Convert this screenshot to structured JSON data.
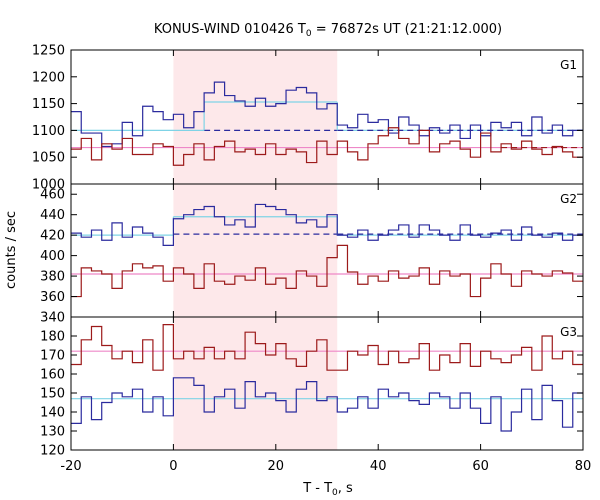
{
  "chart_data": {
    "type": "line",
    "title": "KONUS-WIND 010426 T",
    "title_sub": "0",
    "title_rest": " = 76872s UT (21:21:12.000)",
    "xlabel": "T - T",
    "xlabel_sub": "0",
    "xlabel_rest": ", s",
    "ylabel": "counts / sec",
    "xlim": [
      -20,
      80
    ],
    "x_ticks": [
      -20,
      0,
      20,
      40,
      60,
      80
    ],
    "shaded_interval": [
      0,
      32
    ],
    "colors": {
      "shade": "#fde8ea",
      "blue": "#2b2b9e",
      "red": "#9c1a1a",
      "cyan": "#7fd3e6",
      "pink": "#ee88c8",
      "frame": "#000000"
    },
    "panels": [
      {
        "label": "G1",
        "ylim": [
          1000,
          1250
        ],
        "y_ticks": [
          1000,
          1050,
          1100,
          1150,
          1200,
          1250
        ],
        "bin_edges": [
          -20,
          -18,
          -16,
          -14,
          -12,
          -10,
          -8,
          -6,
          -4,
          -2,
          0,
          2,
          4,
          6,
          8,
          10,
          12,
          14,
          16,
          18,
          20,
          22,
          24,
          26,
          28,
          30,
          32,
          34,
          36,
          38,
          40,
          42,
          44,
          46,
          48,
          50,
          52,
          54,
          56,
          58,
          60,
          62,
          64,
          66,
          68,
          70,
          72,
          74,
          76,
          78,
          80
        ],
        "series": [
          {
            "color_key": "blue",
            "values": [
              1135,
              1095,
              1095,
              1070,
              1075,
              1115,
              1090,
              1145,
              1135,
              1120,
              1130,
              1105,
              1135,
              1170,
              1190,
              1165,
              1155,
              1145,
              1160,
              1145,
              1150,
              1175,
              1180,
              1170,
              1140,
              1150,
              1110,
              1105,
              1130,
              1115,
              1120,
              1095,
              1125,
              1110,
              1090,
              1105,
              1095,
              1110,
              1085,
              1110,
              1090,
              1115,
              1105,
              1115,
              1090,
              1125,
              1095,
              1110,
              1090,
              1100
            ]
          },
          {
            "color_key": "red",
            "values": [
              1065,
              1085,
              1045,
              1075,
              1065,
              1085,
              1055,
              1055,
              1075,
              1070,
              1035,
              1055,
              1075,
              1045,
              1070,
              1080,
              1060,
              1065,
              1055,
              1075,
              1055,
              1065,
              1060,
              1040,
              1080,
              1055,
              1080,
              1060,
              1045,
              1075,
              1090,
              1105,
              1085,
              1075,
              1100,
              1060,
              1075,
              1080,
              1065,
              1050,
              1095,
              1060,
              1075,
              1065,
              1080,
              1065,
              1055,
              1070,
              1060,
              1050
            ]
          }
        ],
        "fits": [
          {
            "color_key": "cyan",
            "style": "solid",
            "segments": [
              [
                -20,
                6,
                1100
              ],
              [
                6,
                32,
                1153
              ],
              [
                32,
                80,
                1100
              ]
            ]
          },
          {
            "color_key": "blue",
            "style": "dashed",
            "segments": [
              [
                6,
                32,
                1100
              ],
              [
                32,
                80,
                1100
              ]
            ]
          },
          {
            "color_key": "pink",
            "style": "solid",
            "segments": [
              [
                -20,
                80,
                1068
              ]
            ]
          },
          {
            "color_key": "red",
            "style": "dashed",
            "segments": [
              [
                64,
                80,
                1068
              ]
            ]
          }
        ]
      },
      {
        "label": "G2",
        "ylim": [
          340,
          470
        ],
        "y_ticks": [
          340,
          360,
          380,
          400,
          420,
          440,
          460
        ],
        "bin_edges": [
          -20,
          -18,
          -16,
          -14,
          -12,
          -10,
          -8,
          -6,
          -4,
          -2,
          0,
          2,
          4,
          6,
          8,
          10,
          12,
          14,
          16,
          18,
          20,
          22,
          24,
          26,
          28,
          30,
          32,
          34,
          36,
          38,
          40,
          42,
          44,
          46,
          48,
          50,
          52,
          54,
          56,
          58,
          60,
          62,
          64,
          66,
          68,
          70,
          72,
          74,
          76,
          78,
          80
        ],
        "series": [
          {
            "color_key": "blue",
            "values": [
              422,
              418,
              425,
              415,
              432,
              418,
              428,
              422,
              418,
              410,
              436,
              440,
              445,
              448,
              438,
              430,
              435,
              428,
              450,
              448,
              445,
              440,
              432,
              435,
              428,
              440,
              420,
              418,
              425,
              415,
              420,
              425,
              430,
              418,
              430,
              425,
              420,
              415,
              430,
              420,
              418,
              422,
              425,
              415,
              428,
              420,
              418,
              422,
              415,
              420
            ]
          },
          {
            "color_key": "red",
            "values": [
              360,
              388,
              385,
              382,
              368,
              385,
              392,
              388,
              390,
              375,
              388,
              382,
              368,
              392,
              375,
              372,
              380,
              376,
              388,
              372,
              378,
              368,
              385,
              380,
              370,
              398,
              410,
              384,
              372,
              380,
              375,
              385,
              378,
              380,
              388,
              372,
              385,
              380,
              382,
              360,
              378,
              392,
              382,
              370,
              385,
              382,
              380,
              385,
              383,
              375
            ]
          }
        ],
        "fits": [
          {
            "color_key": "cyan",
            "style": "solid",
            "segments": [
              [
                -20,
                0,
                420
              ],
              [
                0,
                32,
                438
              ],
              [
                32,
                80,
                420
              ]
            ]
          },
          {
            "color_key": "blue",
            "style": "dashed",
            "segments": [
              [
                0,
                32,
                421
              ],
              [
                32,
                80,
                421
              ]
            ]
          },
          {
            "color_key": "pink",
            "style": "solid",
            "segments": [
              [
                -20,
                80,
                382
              ]
            ]
          }
        ]
      },
      {
        "label": "G3",
        "ylim": [
          120,
          190
        ],
        "y_ticks": [
          120,
          130,
          140,
          150,
          160,
          170,
          180
        ],
        "bin_edges": [
          -20,
          -18,
          -16,
          -14,
          -12,
          -10,
          -8,
          -6,
          -4,
          -2,
          0,
          2,
          4,
          6,
          8,
          10,
          12,
          14,
          16,
          18,
          20,
          22,
          24,
          26,
          28,
          30,
          32,
          34,
          36,
          38,
          40,
          42,
          44,
          46,
          48,
          50,
          52,
          54,
          56,
          58,
          60,
          62,
          64,
          66,
          68,
          70,
          72,
          74,
          76,
          78,
          80
        ],
        "series": [
          {
            "color_key": "red",
            "values": [
              165,
              178,
              185,
              175,
              168,
              172,
              166,
              178,
              162,
              186,
              168,
              172,
              168,
              174,
              168,
              172,
              168,
              182,
              176,
              170,
              176,
              168,
              164,
              172,
              178,
              162,
              162,
              172,
              170,
              175,
              165,
              172,
              166,
              168,
              176,
              162,
              170,
              166,
              176,
              164,
              172,
              168,
              166,
              170,
              174,
              162,
              180,
              168,
              172,
              165
            ]
          },
          {
            "color_key": "blue",
            "values": [
              134,
              148,
              136,
              145,
              150,
              148,
              152,
              140,
              148,
              138,
              158,
              158,
              154,
              140,
              148,
              152,
              142,
              156,
              148,
              150,
              146,
              140,
              152,
              156,
              146,
              148,
              140,
              142,
              148,
              142,
              152,
              148,
              150,
              146,
              144,
              150,
              148,
              142,
              150,
              142,
              134,
              148,
              130,
              140,
              152,
              136,
              154,
              146,
              132,
              150
            ]
          }
        ],
        "fits": [
          {
            "color_key": "cyan",
            "style": "solid",
            "segments": [
              [
                -20,
                80,
                147
              ]
            ]
          },
          {
            "color_key": "pink",
            "style": "solid",
            "segments": [
              [
                -20,
                80,
                172
              ]
            ]
          }
        ]
      }
    ]
  }
}
